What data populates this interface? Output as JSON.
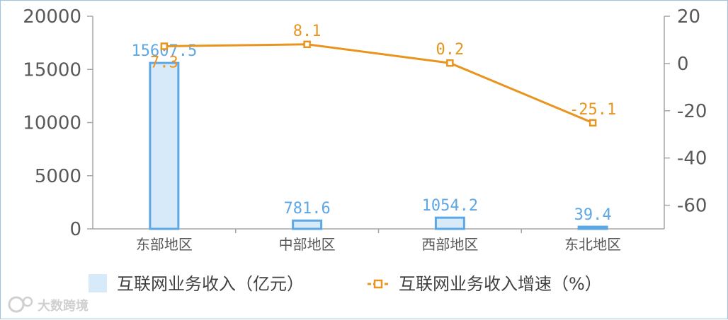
{
  "chart_data": {
    "type": "bar",
    "categories": [
      "东部地区",
      "中部地区",
      "西部地区",
      "东北地区"
    ],
    "series": [
      {
        "name": "互联网业务收入（亿元）",
        "kind": "bar",
        "axis": "left",
        "values": [
          15607.5,
          781.6,
          1054.2,
          39.4
        ],
        "labels": [
          "15607.5",
          "781.6",
          "1054.2",
          "39.4"
        ]
      },
      {
        "name": "互联网业务收入增速（%）",
        "kind": "line",
        "axis": "right",
        "values": [
          7.3,
          8.1,
          0.2,
          -25.1
        ],
        "labels": [
          "7.3",
          "8.1",
          "0.2",
          "-25.1"
        ]
      }
    ],
    "y_left": {
      "min": 0,
      "max": 20000,
      "ticks": [
        "0",
        "5000",
        "10000",
        "15000",
        "20000"
      ]
    },
    "y_right": {
      "min": -70,
      "max": 20,
      "ticks": [
        "20",
        "0",
        "-20",
        "-40",
        "-60"
      ]
    },
    "legend_position": "bottom",
    "grid": false,
    "colors": {
      "bar_fill": "#d6eaf9",
      "bar_stroke": "#5ea7e5",
      "line": "#e8951f",
      "axis": "#a6a6a6"
    }
  },
  "watermark": {
    "text": "大数跨境"
  }
}
